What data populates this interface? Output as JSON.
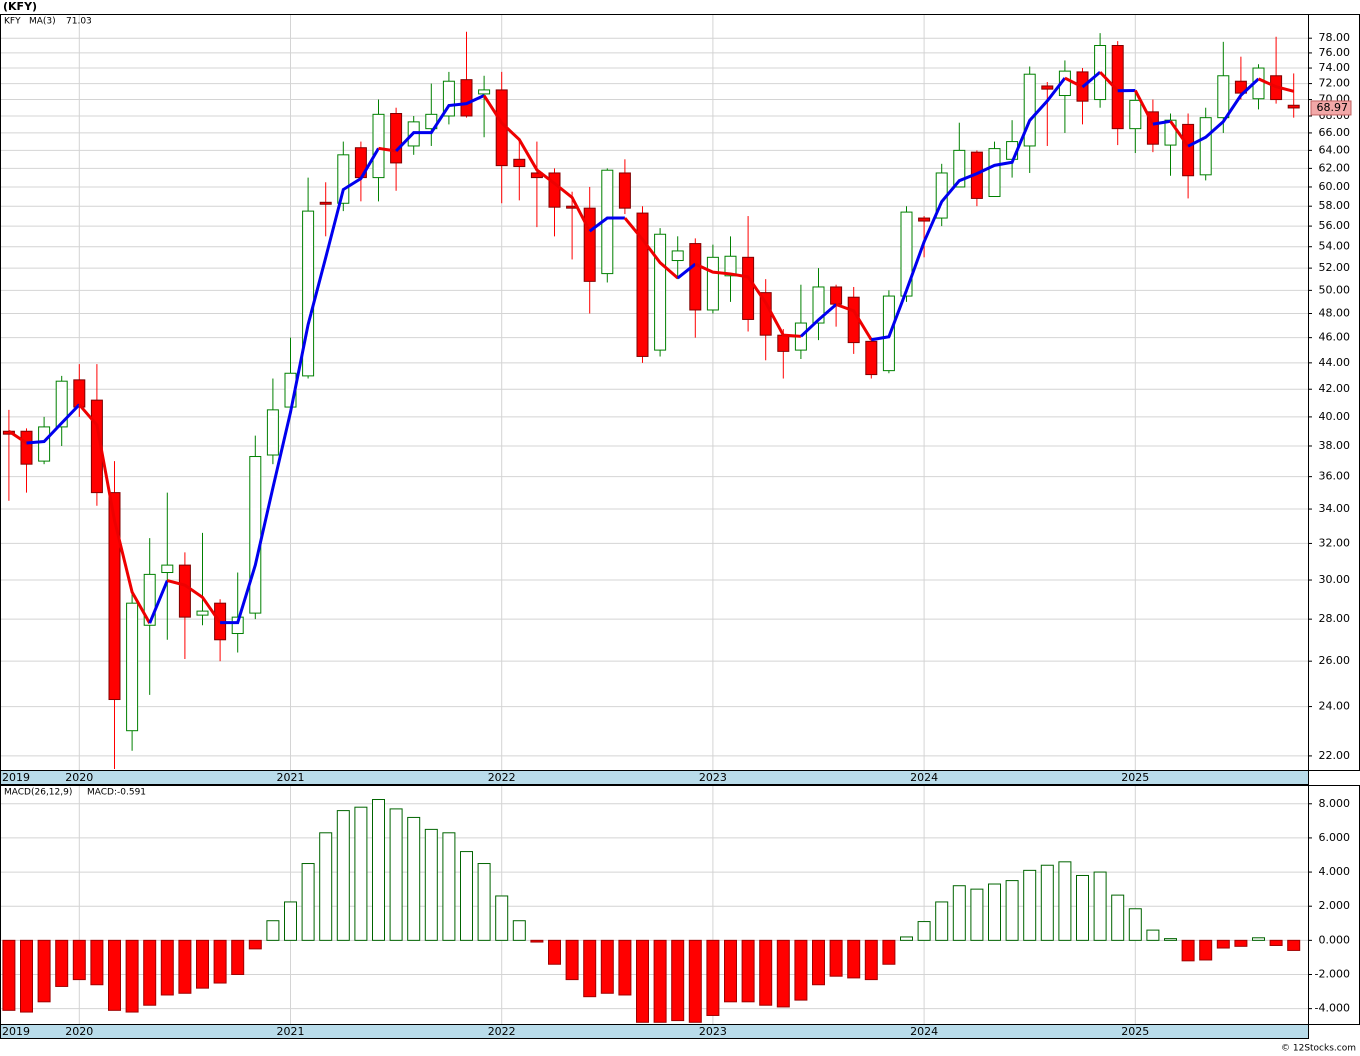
{
  "chart_data": [
    {
      "type": "candlestick",
      "title": "(KFY)",
      "log_scale": true,
      "grid": true,
      "categories": [
        "2019",
        null,
        null,
        null,
        "2020",
        null,
        null,
        null,
        null,
        null,
        null,
        null,
        null,
        null,
        null,
        null,
        "2021",
        null,
        null,
        null,
        null,
        null,
        null,
        null,
        null,
        null,
        null,
        null,
        "2022",
        null,
        null,
        null,
        null,
        null,
        null,
        null,
        null,
        null,
        null,
        null,
        "2023",
        null,
        null,
        null,
        null,
        null,
        null,
        null,
        null,
        null,
        null,
        null,
        "2024",
        null,
        null,
        null,
        null,
        null,
        null,
        null,
        null,
        null,
        null,
        null,
        "2025",
        null,
        null,
        null,
        null,
        null,
        null,
        null,
        null,
        null
      ],
      "series": [
        {
          "name": "KFY",
          "color": "#008000",
          "up_color": "#008000",
          "down_color": "#ff0000",
          "open": [
            39.0,
            39.0,
            37.0,
            39.3,
            42.7,
            41.2,
            35.0,
            23.0,
            27.7,
            30.4,
            30.8,
            28.2,
            28.8,
            27.3,
            28.3,
            37.4,
            40.7,
            43.0,
            58.4,
            58.3,
            64.3,
            61.0,
            68.3,
            64.5,
            66.5,
            68.0,
            72.5,
            70.7,
            71.2,
            63.0,
            61.5,
            61.5,
            58.0,
            57.8,
            51.5,
            61.5,
            57.3,
            45.0,
            52.7,
            54.3,
            48.3,
            51.3,
            53.0,
            49.8,
            46.2,
            45.0,
            47.2,
            50.3,
            49.4,
            45.7,
            43.4,
            49.5,
            56.8,
            56.8,
            60.0,
            63.8,
            59.0,
            63.0,
            64.5,
            71.7,
            70.5,
            73.5,
            70.0,
            77.0,
            66.5,
            68.5,
            64.6,
            67.0,
            61.3,
            67.8,
            72.3,
            70.1,
            73.0,
            69.3
          ],
          "high": [
            40.5,
            39.2,
            40.0,
            43.0,
            43.9,
            43.9,
            37.0,
            29.5,
            32.3,
            35.0,
            31.5,
            32.6,
            29.0,
            30.4,
            38.7,
            42.8,
            46.0,
            61.0,
            60.5,
            65.0,
            65.0,
            70.0,
            69.0,
            68.0,
            72.0,
            73.5,
            78.9,
            73.0,
            73.5,
            65.0,
            65.0,
            62.0,
            59.5,
            60.0,
            62.0,
            63.0,
            58.0,
            55.8,
            55.0,
            54.8,
            54.2,
            55.0,
            57.0,
            51.0,
            46.7,
            50.5,
            52.0,
            50.5,
            50.3,
            46.0,
            50.0,
            58.0,
            57.0,
            62.5,
            67.2,
            64.0,
            65.0,
            67.5,
            74.2,
            72.2,
            75.0,
            74.0,
            78.7,
            77.6,
            71.0,
            70.0,
            68.3,
            68.3,
            69.0,
            77.5,
            75.5,
            74.5,
            78.2,
            73.3
          ],
          "low": [
            34.5,
            35.0,
            36.8,
            38.0,
            40.0,
            34.2,
            21.5,
            22.2,
            24.5,
            27.0,
            26.1,
            27.7,
            26.0,
            26.4,
            28.0,
            36.8,
            40.0,
            42.8,
            55.0,
            57.5,
            58.5,
            58.5,
            59.6,
            63.5,
            64.5,
            67.0,
            67.8,
            65.5,
            58.3,
            58.6,
            55.9,
            55.0,
            52.8,
            48.0,
            50.7,
            57.2,
            44.0,
            44.5,
            51.0,
            46.0,
            48.0,
            49.0,
            46.5,
            44.2,
            42.8,
            44.3,
            45.8,
            46.9,
            44.7,
            42.8,
            43.2,
            49.0,
            53.0,
            56.0,
            60.0,
            58.0,
            59.0,
            61.0,
            61.5,
            64.5,
            66.0,
            67.0,
            69.0,
            64.6,
            63.7,
            63.8,
            61.2,
            58.8,
            60.7,
            66.0,
            70.0,
            68.8,
            69.5,
            67.8
          ],
          "close": [
            38.8,
            36.8,
            39.3,
            42.6,
            40.7,
            35.0,
            24.3,
            28.8,
            30.3,
            30.8,
            28.1,
            28.4,
            27.0,
            28.1,
            37.3,
            40.5,
            43.2,
            57.5,
            58.2,
            63.5,
            61.0,
            68.2,
            62.6,
            67.3,
            68.2,
            72.3,
            68.0,
            71.2,
            62.3,
            62.2,
            61.0,
            57.9,
            57.8,
            50.8,
            61.8,
            57.8,
            44.5,
            55.2,
            53.6,
            48.3,
            53.0,
            53.1,
            47.5,
            46.2,
            44.9,
            47.2,
            50.3,
            48.8,
            45.6,
            43.1,
            49.5,
            57.4,
            56.5,
            61.5,
            64.0,
            58.8,
            64.2,
            65.0,
            73.2,
            71.3,
            73.6,
            69.8,
            77.0,
            66.5,
            69.9,
            64.7,
            67.5,
            61.2,
            67.8,
            73.0,
            70.8,
            74.0,
            70.0,
            68.97
          ]
        },
        {
          "name": "MA(3)",
          "type": "line",
          "color": "#0000ee",
          "up_color": "#0000ee",
          "down_color": "#ee0000",
          "values": [
            39.0,
            38.2,
            38.3,
            39.57,
            40.87,
            39.43,
            33.33,
            29.37,
            27.8,
            29.97,
            29.73,
            29.1,
            27.83,
            27.83,
            30.8,
            35.3,
            40.33,
            47.07,
            52.97,
            59.73,
            60.9,
            64.23,
            63.93,
            66.03,
            66.03,
            69.27,
            69.5,
            70.5,
            67.17,
            65.23,
            61.83,
            60.37,
            58.9,
            55.5,
            56.8,
            56.8,
            54.7,
            52.5,
            51.1,
            52.37,
            51.63,
            51.47,
            51.2,
            48.93,
            46.2,
            46.1,
            47.47,
            48.77,
            48.23,
            45.83,
            46.07,
            50.0,
            54.47,
            58.47,
            60.67,
            61.43,
            62.33,
            62.67,
            67.47,
            69.83,
            72.7,
            71.57,
            73.47,
            71.1,
            71.13,
            67.03,
            67.37,
            64.47,
            65.5,
            67.33,
            70.53,
            72.6,
            71.6,
            71.03
          ]
        }
      ],
      "ylim": [
        21.46,
        81.4
      ],
      "yticks": [
        {
          "value": 22,
          "label": "22.00"
        },
        {
          "value": 24,
          "label": "24.00"
        },
        {
          "value": 26,
          "label": "26.00"
        },
        {
          "value": 28,
          "label": "28.00"
        },
        {
          "value": 30,
          "label": "30.00"
        },
        {
          "value": 32,
          "label": "32.00"
        },
        {
          "value": 34,
          "label": "34.00"
        },
        {
          "value": 36,
          "label": "36.00"
        },
        {
          "value": 38,
          "label": "38.00"
        },
        {
          "value": 40,
          "label": "40.00"
        },
        {
          "value": 42,
          "label": "42.00"
        },
        {
          "value": 44,
          "label": "44.00"
        },
        {
          "value": 46,
          "label": "46.00"
        },
        {
          "value": 48,
          "label": "48.00"
        },
        {
          "value": 50,
          "label": "50.00"
        },
        {
          "value": 52,
          "label": "52.00"
        },
        {
          "value": 54,
          "label": "54.00"
        },
        {
          "value": 56,
          "label": "56.00"
        },
        {
          "value": 58,
          "label": "58.00"
        },
        {
          "value": 60,
          "label": "60.00"
        },
        {
          "value": 62,
          "label": "62.00"
        },
        {
          "value": 64,
          "label": "64.00"
        },
        {
          "value": 66,
          "label": "66.00"
        },
        {
          "value": 68,
          "label": "68.00"
        },
        {
          "value": 70,
          "label": "70.00"
        },
        {
          "value": 72,
          "label": "72.00"
        },
        {
          "value": 74,
          "label": "74.00"
        },
        {
          "value": 76,
          "label": "76.00"
        },
        {
          "value": 78,
          "label": "78.00"
        }
      ]
    },
    {
      "type": "bar",
      "title": "MACD(26,12,9)",
      "subtitle": "MACD:-0.591",
      "grid": true,
      "pos_color": "#006400",
      "neg_color": "#ff0000",
      "categories": [
        "2019",
        null,
        null,
        null,
        "2020",
        null,
        null,
        null,
        null,
        null,
        null,
        null,
        null,
        null,
        null,
        null,
        "2021",
        null,
        null,
        null,
        null,
        null,
        null,
        null,
        null,
        null,
        null,
        null,
        "2022",
        null,
        null,
        null,
        null,
        null,
        null,
        null,
        null,
        null,
        null,
        null,
        "2023",
        null,
        null,
        null,
        null,
        null,
        null,
        null,
        null,
        null,
        null,
        null,
        "2024",
        null,
        null,
        null,
        null,
        null,
        null,
        null,
        null,
        null,
        null,
        null,
        "2025",
        null,
        null,
        null,
        null,
        null,
        null,
        null,
        null,
        null
      ],
      "values": [
        -4.1,
        -4.2,
        -3.6,
        -2.7,
        -2.3,
        -2.6,
        -4.1,
        -4.2,
        -3.8,
        -3.2,
        -3.1,
        -2.8,
        -2.5,
        -2.0,
        -0.5,
        1.15,
        2.25,
        4.5,
        6.3,
        7.6,
        7.8,
        8.25,
        7.7,
        7.2,
        6.5,
        6.3,
        5.2,
        4.5,
        2.6,
        1.15,
        -0.1,
        -1.4,
        -2.3,
        -3.3,
        -3.1,
        -3.2,
        -4.8,
        -4.8,
        -4.7,
        -4.8,
        -4.4,
        -3.6,
        -3.6,
        -3.8,
        -3.9,
        -3.5,
        -2.6,
        -2.1,
        -2.2,
        -2.3,
        -1.4,
        0.2,
        1.1,
        2.25,
        3.2,
        3.0,
        3.3,
        3.5,
        4.1,
        4.4,
        4.6,
        3.8,
        4.0,
        2.65,
        1.85,
        0.6,
        0.1,
        -1.2,
        -1.15,
        -0.45,
        -0.35,
        0.15,
        -0.3,
        -0.591
      ],
      "ylim": [
        -4.9,
        9.1
      ],
      "yticks": [
        {
          "value": -4,
          "label": "-4.000"
        },
        {
          "value": -2,
          "label": "-2.000"
        },
        {
          "value": 0,
          "label": "0.000"
        },
        {
          "value": 2,
          "label": "2.000"
        },
        {
          "value": 4,
          "label": "4.000"
        },
        {
          "value": 6,
          "label": "6.000"
        },
        {
          "value": 8,
          "label": "8.000"
        }
      ]
    }
  ],
  "footer": "© 12Stocks.com"
}
